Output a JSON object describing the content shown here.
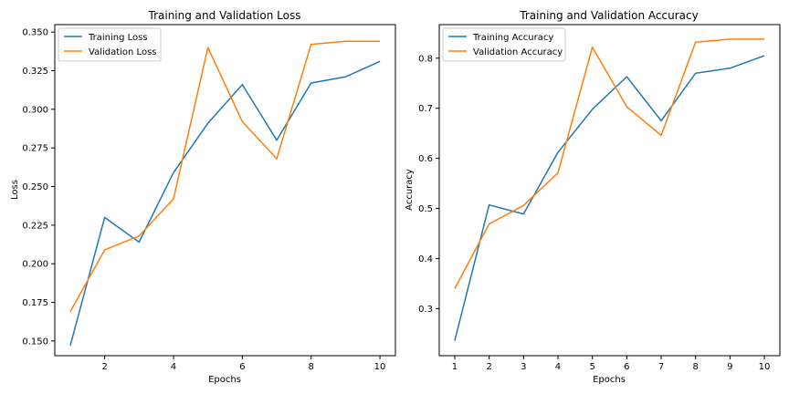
{
  "chart_data": [
    {
      "type": "line",
      "title": "Training and Validation Loss",
      "xlabel": "Epochs",
      "ylabel": "Loss",
      "xlim": [
        0.55,
        10.45
      ],
      "ylim": [
        0.1405,
        0.3548
      ],
      "xticks": [
        2,
        4,
        6,
        8,
        10
      ],
      "yticks": [
        0.15,
        0.175,
        0.2,
        0.225,
        0.25,
        0.275,
        0.3,
        0.325,
        0.35
      ],
      "ytick_decimals": 3,
      "x": [
        1,
        2,
        3,
        4,
        5,
        6,
        7,
        8,
        9,
        10
      ],
      "legend_position": "upper-left",
      "series": [
        {
          "name": "Training Loss",
          "color": "#1f77b4",
          "values": [
            0.147,
            0.23,
            0.214,
            0.259,
            0.291,
            0.316,
            0.28,
            0.317,
            0.321,
            0.331
          ]
        },
        {
          "name": "Validation Loss",
          "color": "#ff7f0e",
          "values": [
            0.169,
            0.209,
            0.218,
            0.242,
            0.34,
            0.292,
            0.268,
            0.342,
            0.344,
            0.344
          ]
        }
      ]
    },
    {
      "type": "line",
      "title": "Training and Validation Accuracy",
      "xlabel": "Epochs",
      "ylabel": "Accuracy",
      "xlim": [
        0.55,
        10.45
      ],
      "ylim": [
        0.206,
        0.867
      ],
      "xticks": [
        1,
        2,
        3,
        4,
        5,
        6,
        7,
        8,
        9,
        10
      ],
      "yticks": [
        0.3,
        0.4,
        0.5,
        0.6,
        0.7,
        0.8
      ],
      "ytick_decimals": 1,
      "x": [
        1,
        2,
        3,
        4,
        5,
        6,
        7,
        8,
        9,
        10
      ],
      "legend_position": "upper-left",
      "series": [
        {
          "name": "Training Accuracy",
          "color": "#1f77b4",
          "values": [
            0.236,
            0.507,
            0.489,
            0.612,
            0.698,
            0.763,
            0.675,
            0.77,
            0.78,
            0.805
          ]
        },
        {
          "name": "Validation Accuracy",
          "color": "#ff7f0e",
          "values": [
            0.34,
            0.469,
            0.506,
            0.571,
            0.822,
            0.703,
            0.646,
            0.832,
            0.838,
            0.838
          ]
        }
      ]
    }
  ]
}
